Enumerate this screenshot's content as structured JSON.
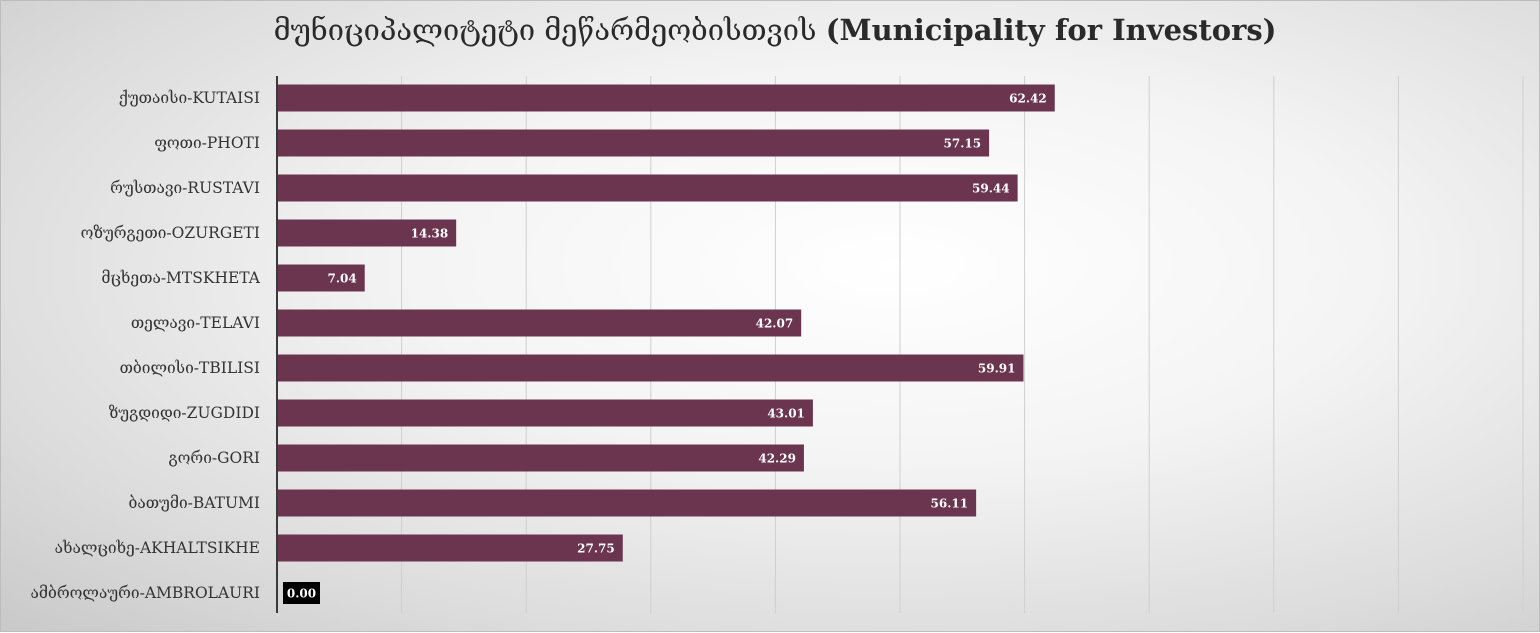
{
  "chart_data": {
    "type": "bar",
    "orientation": "horizontal",
    "title_georgian": "მუნიციპალიტეტი მეწარმეობისთვის",
    "title_english": "(Municipality for Investors)",
    "categories": [
      "ქუთაისი-KUTAISI",
      "ფოთი-PHOTI",
      "რუსთავი-RUSTAVI",
      "ოზურგეთი-OZURGETI",
      "მცხეთა-MTSKHETA",
      "თელავი-TELAVI",
      "თბილისი-TBILISI",
      "ზუგდიდი-ZUGDIDI",
      "გორი-GORI",
      "ბათუმი-BATUMI",
      "ახალციხე-AKHALTSIKHE",
      "ამბროლაური-AMBROLAURI"
    ],
    "values": [
      62.42,
      57.15,
      59.44,
      14.38,
      7.04,
      42.07,
      59.91,
      43.01,
      42.29,
      56.11,
      27.75,
      0.0
    ],
    "value_labels": [
      "62.42",
      "57.15",
      "59.44",
      "14.38",
      "7.04",
      "42.07",
      "59.91",
      "43.01",
      "42.29",
      "56.11",
      "27.75",
      "0.00"
    ],
    "xlim": [
      0,
      100
    ],
    "grid_step": 10,
    "grid": true,
    "xlabel": "",
    "ylabel": "",
    "bar_color": "#6b3550",
    "zero_label_bg": "#000000"
  }
}
